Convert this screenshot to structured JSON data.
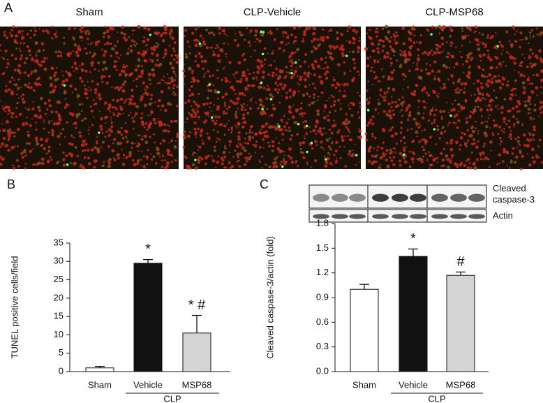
{
  "panel_a": {
    "label": "A",
    "images": [
      "Sham",
      "CLP-Vehicle",
      "CLP-MSP68"
    ]
  },
  "blot": {
    "labels": [
      "Cleaved caspase-3",
      "Actin"
    ]
  },
  "chart_data": [
    {
      "type": "bar",
      "panel": "B",
      "ylabel": "TUNEL positive cells/field",
      "categories": [
        "Sham",
        "Vehicle",
        "MSP68"
      ],
      "group_label": "CLP",
      "values": [
        1,
        29.5,
        10.5
      ],
      "errors": [
        0.4,
        1,
        4.8
      ],
      "colors": [
        "#ffffff",
        "#111111",
        "#d4d4d4"
      ],
      "annotations": [
        null,
        "*",
        "* #"
      ],
      "ylim": [
        0,
        35
      ],
      "yticks": [
        0,
        5,
        10,
        15,
        20,
        25,
        30,
        35
      ]
    },
    {
      "type": "bar",
      "panel": "C",
      "ylabel": "Cleaved caspase-3/actin (fold)",
      "categories": [
        "Sham",
        "Vehicle",
        "MSP68"
      ],
      "group_label": "CLP",
      "values": [
        1.0,
        1.4,
        1.17
      ],
      "errors": [
        0.06,
        0.09,
        0.04
      ],
      "colors": [
        "#ffffff",
        "#111111",
        "#d4d4d4"
      ],
      "annotations": [
        null,
        "*",
        "#"
      ],
      "ylim": [
        0,
        1.8
      ],
      "yticks": [
        {
          "value": 0,
          "label": "0.0"
        },
        0.3,
        0.6,
        0.9,
        1.2,
        1.5,
        1.8
      ]
    }
  ]
}
